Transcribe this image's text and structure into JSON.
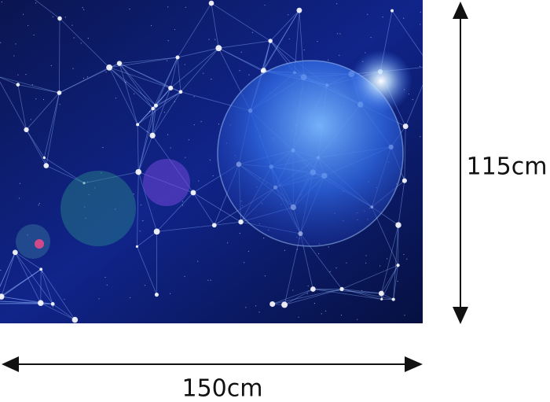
{
  "product": {
    "height_label": "115cm",
    "width_label": "150cm"
  }
}
